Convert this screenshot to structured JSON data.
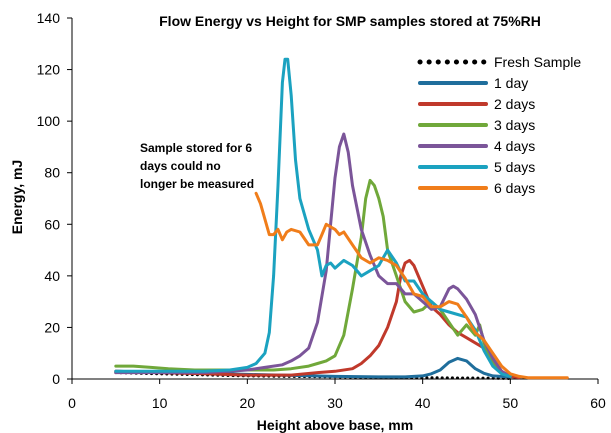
{
  "chart_data": {
    "type": "line",
    "title": "Flow Energy vs Height for SMP samples stored at 75%RH",
    "xlabel": "Height above base, mm",
    "ylabel": "Energy, mJ",
    "xlim": [
      0,
      60
    ],
    "ylim": [
      0,
      140
    ],
    "xticks": [
      0,
      10,
      20,
      30,
      40,
      50,
      60
    ],
    "yticks": [
      0,
      20,
      40,
      60,
      80,
      100,
      120,
      140
    ],
    "grid": false,
    "legend_position": "top-right",
    "annotation": {
      "lines": [
        "Sample stored for 6",
        "days could no",
        "longer be measured"
      ]
    },
    "series": [
      {
        "name": "Fresh Sample",
        "color": "#000000",
        "style": "dotted",
        "points": [
          [
            5,
            2.5
          ],
          [
            10,
            2.0
          ],
          [
            15,
            1.6
          ],
          [
            20,
            1.2
          ],
          [
            25,
            1.0
          ],
          [
            30,
            0.8
          ],
          [
            35,
            0.6
          ],
          [
            40,
            0.5
          ],
          [
            45,
            0.4
          ],
          [
            48,
            0.3
          ],
          [
            50,
            0.2
          ]
        ]
      },
      {
        "name": "1 day",
        "color": "#1F6E9C",
        "style": "solid",
        "points": [
          [
            5,
            3.0
          ],
          [
            10,
            2.6
          ],
          [
            15,
            2.2
          ],
          [
            20,
            1.8
          ],
          [
            25,
            1.4
          ],
          [
            30,
            1.0
          ],
          [
            35,
            0.8
          ],
          [
            38,
            0.8
          ],
          [
            40,
            1.2
          ],
          [
            41,
            2.0
          ],
          [
            42,
            3.5
          ],
          [
            43,
            6.5
          ],
          [
            44,
            8.0
          ],
          [
            45,
            7.0
          ],
          [
            46,
            4.0
          ],
          [
            47,
            2.2
          ],
          [
            48,
            1.2
          ],
          [
            50,
            0.8
          ]
        ]
      },
      {
        "name": "2 days",
        "color": "#C0392B",
        "style": "solid",
        "points": [
          [
            5,
            3.0
          ],
          [
            10,
            2.5
          ],
          [
            15,
            2.0
          ],
          [
            20,
            1.5
          ],
          [
            25,
            1.5
          ],
          [
            28,
            2.5
          ],
          [
            30,
            3.0
          ],
          [
            32,
            4.0
          ],
          [
            33,
            6.0
          ],
          [
            34,
            9.0
          ],
          [
            35,
            13.0
          ],
          [
            36,
            20.0
          ],
          [
            37,
            30.0
          ],
          [
            37.5,
            40.0
          ],
          [
            38,
            45.0
          ],
          [
            38.5,
            46.0
          ],
          [
            39,
            44.0
          ],
          [
            40,
            36.0
          ],
          [
            41,
            28.0
          ],
          [
            42,
            25.0
          ],
          [
            43,
            21.0
          ],
          [
            44,
            18.0
          ],
          [
            45,
            16.0
          ],
          [
            46,
            14.0
          ],
          [
            47,
            12.0
          ],
          [
            48,
            8.0
          ],
          [
            49,
            3.0
          ],
          [
            50,
            1.0
          ],
          [
            51,
            0.5
          ]
        ]
      },
      {
        "name": "3 days",
        "color": "#70A83A",
        "style": "solid",
        "points": [
          [
            5,
            5.0
          ],
          [
            7,
            5.0
          ],
          [
            9,
            4.5
          ],
          [
            11,
            4.0
          ],
          [
            14,
            3.5
          ],
          [
            17,
            3.5
          ],
          [
            20,
            3.5
          ],
          [
            23,
            3.5
          ],
          [
            25,
            4.0
          ],
          [
            27,
            5.0
          ],
          [
            28,
            6.0
          ],
          [
            29,
            7.0
          ],
          [
            30,
            9.0
          ],
          [
            31,
            17.0
          ],
          [
            32,
            35.0
          ],
          [
            33,
            55.0
          ],
          [
            33.5,
            70.0
          ],
          [
            34,
            77.0
          ],
          [
            34.5,
            75.0
          ],
          [
            35,
            70.0
          ],
          [
            35.5,
            63.0
          ],
          [
            36,
            50.0
          ],
          [
            37,
            40.0
          ],
          [
            38,
            30.0
          ],
          [
            39,
            26.0
          ],
          [
            40,
            27.0
          ],
          [
            41,
            30.0
          ],
          [
            42,
            27.0
          ],
          [
            43,
            22.0
          ],
          [
            44,
            17.0
          ],
          [
            45,
            21.0
          ],
          [
            46,
            17.0
          ],
          [
            46.5,
            21.0
          ],
          [
            47,
            14.0
          ],
          [
            48,
            6.0
          ],
          [
            49,
            2.5
          ],
          [
            50,
            1.0
          ]
        ]
      },
      {
        "name": "4 days",
        "color": "#7B5599",
        "style": "solid",
        "points": [
          [
            5,
            2.5
          ],
          [
            10,
            2.5
          ],
          [
            15,
            2.5
          ],
          [
            18,
            3.0
          ],
          [
            20,
            3.5
          ],
          [
            22,
            4.5
          ],
          [
            24,
            5.5
          ],
          [
            25,
            7.0
          ],
          [
            26,
            9.0
          ],
          [
            27,
            12.0
          ],
          [
            28,
            22.0
          ],
          [
            29,
            42.0
          ],
          [
            29.5,
            60.0
          ],
          [
            30,
            78.0
          ],
          [
            30.5,
            90.0
          ],
          [
            31,
            95.0
          ],
          [
            31.5,
            88.0
          ],
          [
            32,
            75.0
          ],
          [
            33,
            58.0
          ],
          [
            34,
            48.0
          ],
          [
            35,
            40.0
          ],
          [
            36,
            37.0
          ],
          [
            37,
            37.0
          ],
          [
            38,
            33.0
          ],
          [
            39,
            33.0
          ],
          [
            40,
            30.0
          ],
          [
            41,
            27.0
          ],
          [
            42,
            28.0
          ],
          [
            43,
            35.0
          ],
          [
            43.5,
            36.0
          ],
          [
            44,
            35.0
          ],
          [
            45,
            31.0
          ],
          [
            46,
            25.0
          ],
          [
            47,
            15.0
          ],
          [
            48,
            8.0
          ],
          [
            49,
            3.0
          ],
          [
            50,
            1.0
          ]
        ]
      },
      {
        "name": "5 days",
        "color": "#1BA2C0",
        "style": "solid",
        "points": [
          [
            5,
            3.0
          ],
          [
            10,
            3.0
          ],
          [
            15,
            3.0
          ],
          [
            18,
            3.5
          ],
          [
            20,
            4.5
          ],
          [
            21,
            6.0
          ],
          [
            22,
            10.0
          ],
          [
            22.5,
            18.0
          ],
          [
            23,
            40.0
          ],
          [
            23.5,
            75.0
          ],
          [
            24,
            115.0
          ],
          [
            24.3,
            124.0
          ],
          [
            24.6,
            124.0
          ],
          [
            25,
            110.0
          ],
          [
            25.5,
            85.0
          ],
          [
            26,
            70.0
          ],
          [
            27,
            58.0
          ],
          [
            28,
            50.0
          ],
          [
            28.5,
            40.0
          ],
          [
            29,
            44.0
          ],
          [
            29.5,
            45.0
          ],
          [
            30,
            43.0
          ],
          [
            31,
            46.0
          ],
          [
            32,
            44.0
          ],
          [
            33,
            40.0
          ],
          [
            34,
            42.0
          ],
          [
            35,
            44.0
          ],
          [
            36,
            50.0
          ],
          [
            37,
            45.0
          ],
          [
            38,
            38.0
          ],
          [
            39,
            38.0
          ],
          [
            40,
            33.0
          ],
          [
            41,
            30.0
          ],
          [
            42,
            27.0
          ],
          [
            43,
            26.0
          ],
          [
            44,
            25.0
          ],
          [
            45,
            24.0
          ],
          [
            46,
            19.0
          ],
          [
            47,
            11.0
          ],
          [
            48,
            5.0
          ],
          [
            49,
            2.0
          ],
          [
            50,
            1.0
          ]
        ]
      },
      {
        "name": "6 days",
        "color": "#F07D1A",
        "style": "solid",
        "points": [
          [
            21,
            72.0
          ],
          [
            21.5,
            68.0
          ],
          [
            22,
            62.0
          ],
          [
            22.5,
            56.0
          ],
          [
            23,
            56.0
          ],
          [
            23.5,
            58.0
          ],
          [
            24,
            54.0
          ],
          [
            24.5,
            57.0
          ],
          [
            25,
            58.0
          ],
          [
            26,
            57.0
          ],
          [
            27,
            52.0
          ],
          [
            28,
            52.0
          ],
          [
            28.5,
            56.0
          ],
          [
            29,
            60.0
          ],
          [
            30,
            58.0
          ],
          [
            30.5,
            56.0
          ],
          [
            31,
            57.0
          ],
          [
            32,
            52.0
          ],
          [
            33,
            47.0
          ],
          [
            34,
            45.0
          ],
          [
            35,
            47.0
          ],
          [
            36,
            46.0
          ],
          [
            37,
            44.0
          ],
          [
            38,
            39.0
          ],
          [
            39,
            33.0
          ],
          [
            40,
            32.0
          ],
          [
            41,
            28.0
          ],
          [
            42,
            28.0
          ],
          [
            43,
            30.0
          ],
          [
            44,
            29.0
          ],
          [
            45,
            24.0
          ],
          [
            46,
            18.0
          ],
          [
            47,
            15.0
          ],
          [
            48,
            10.0
          ],
          [
            49,
            5.0
          ],
          [
            50,
            2.0
          ],
          [
            51,
            1.0
          ],
          [
            52,
            0.5
          ],
          [
            55,
            0.5
          ],
          [
            56.5,
            0.5
          ]
        ]
      }
    ]
  }
}
